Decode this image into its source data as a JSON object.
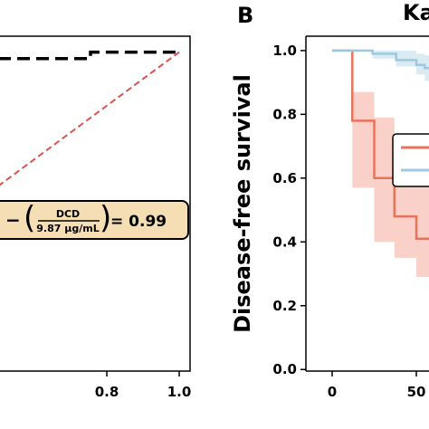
{
  "chart_data": [
    {
      "type": "line",
      "panel": "A",
      "x_ticks": [
        "0.8",
        "1.0"
      ],
      "xlim": [
        0.5,
        1.03
      ],
      "ylim": [
        0.0,
        1.05
      ],
      "series": [
        {
          "style": "dashed",
          "color": "#000000",
          "x": [
            0.5,
            0.655,
            0.655,
            0.755,
            0.755,
            1.0
          ],
          "y": [
            0.98,
            0.98,
            0.98,
            0.98,
            1.0,
            1.0
          ]
        },
        {
          "style": "dashed",
          "color": "#d9534f",
          "x": [
            0.5,
            1.0
          ],
          "y": [
            0.58,
            1.0
          ]
        }
      ],
      "annotation": {
        "prefix": "−",
        "fraction_numerator": "DCD",
        "fraction_denominator": "9.87 μg/mL",
        "suffix": "= 0.99",
        "box_color": "#f5deb3"
      }
    },
    {
      "type": "line",
      "panel": "B",
      "panel_letter": "B",
      "title_fragment": "Ka",
      "ylabel": "Disease-free survival",
      "y_ticks": [
        "0.0",
        "0.2",
        "0.4",
        "0.6",
        "0.8",
        "1.0"
      ],
      "x_ticks": [
        "0",
        "50"
      ],
      "xlim": [
        -12,
        63
      ],
      "ylim": [
        -0.005,
        1.045
      ],
      "series": [
        {
          "style": "step",
          "color": "#e8735a",
          "band_color": "#f7c2b6",
          "x": [
            0,
            12,
            12,
            25,
            25,
            37,
            37,
            50,
            50,
            63
          ],
          "y": [
            1.0,
            1.0,
            0.78,
            0.78,
            0.6,
            0.6,
            0.48,
            0.48,
            0.41,
            0.41
          ],
          "lower": [
            1.0,
            1.0,
            0.57,
            0.57,
            0.4,
            0.4,
            0.35,
            0.35,
            0.29,
            0.29
          ],
          "upper": [
            1.0,
            1.0,
            0.87,
            0.87,
            0.79,
            0.79,
            0.71,
            0.71,
            0.6,
            0.6
          ]
        },
        {
          "style": "step",
          "color": "#9cc9df",
          "band_color": "#cfe4ef",
          "x": [
            0,
            12,
            12,
            24,
            24,
            38,
            38,
            50,
            50,
            55,
            55,
            63
          ],
          "y": [
            1.0,
            1.0,
            1.0,
            1.0,
            0.99,
            0.99,
            0.97,
            0.97,
            0.955,
            0.955,
            0.945,
            0.945
          ],
          "lower": [
            1.0,
            1.0,
            1.0,
            1.0,
            0.975,
            0.975,
            0.95,
            0.95,
            0.925,
            0.925,
            0.905,
            0.905
          ],
          "upper": [
            1.0,
            1.0,
            1.0,
            1.0,
            1.0,
            1.0,
            1.0,
            1.0,
            0.99,
            0.99,
            0.985,
            0.985
          ]
        }
      ],
      "legend": {
        "placement": "right",
        "entries": [
          {
            "color": "#e8735a"
          },
          {
            "color": "#9cc9df"
          }
        ]
      }
    }
  ]
}
